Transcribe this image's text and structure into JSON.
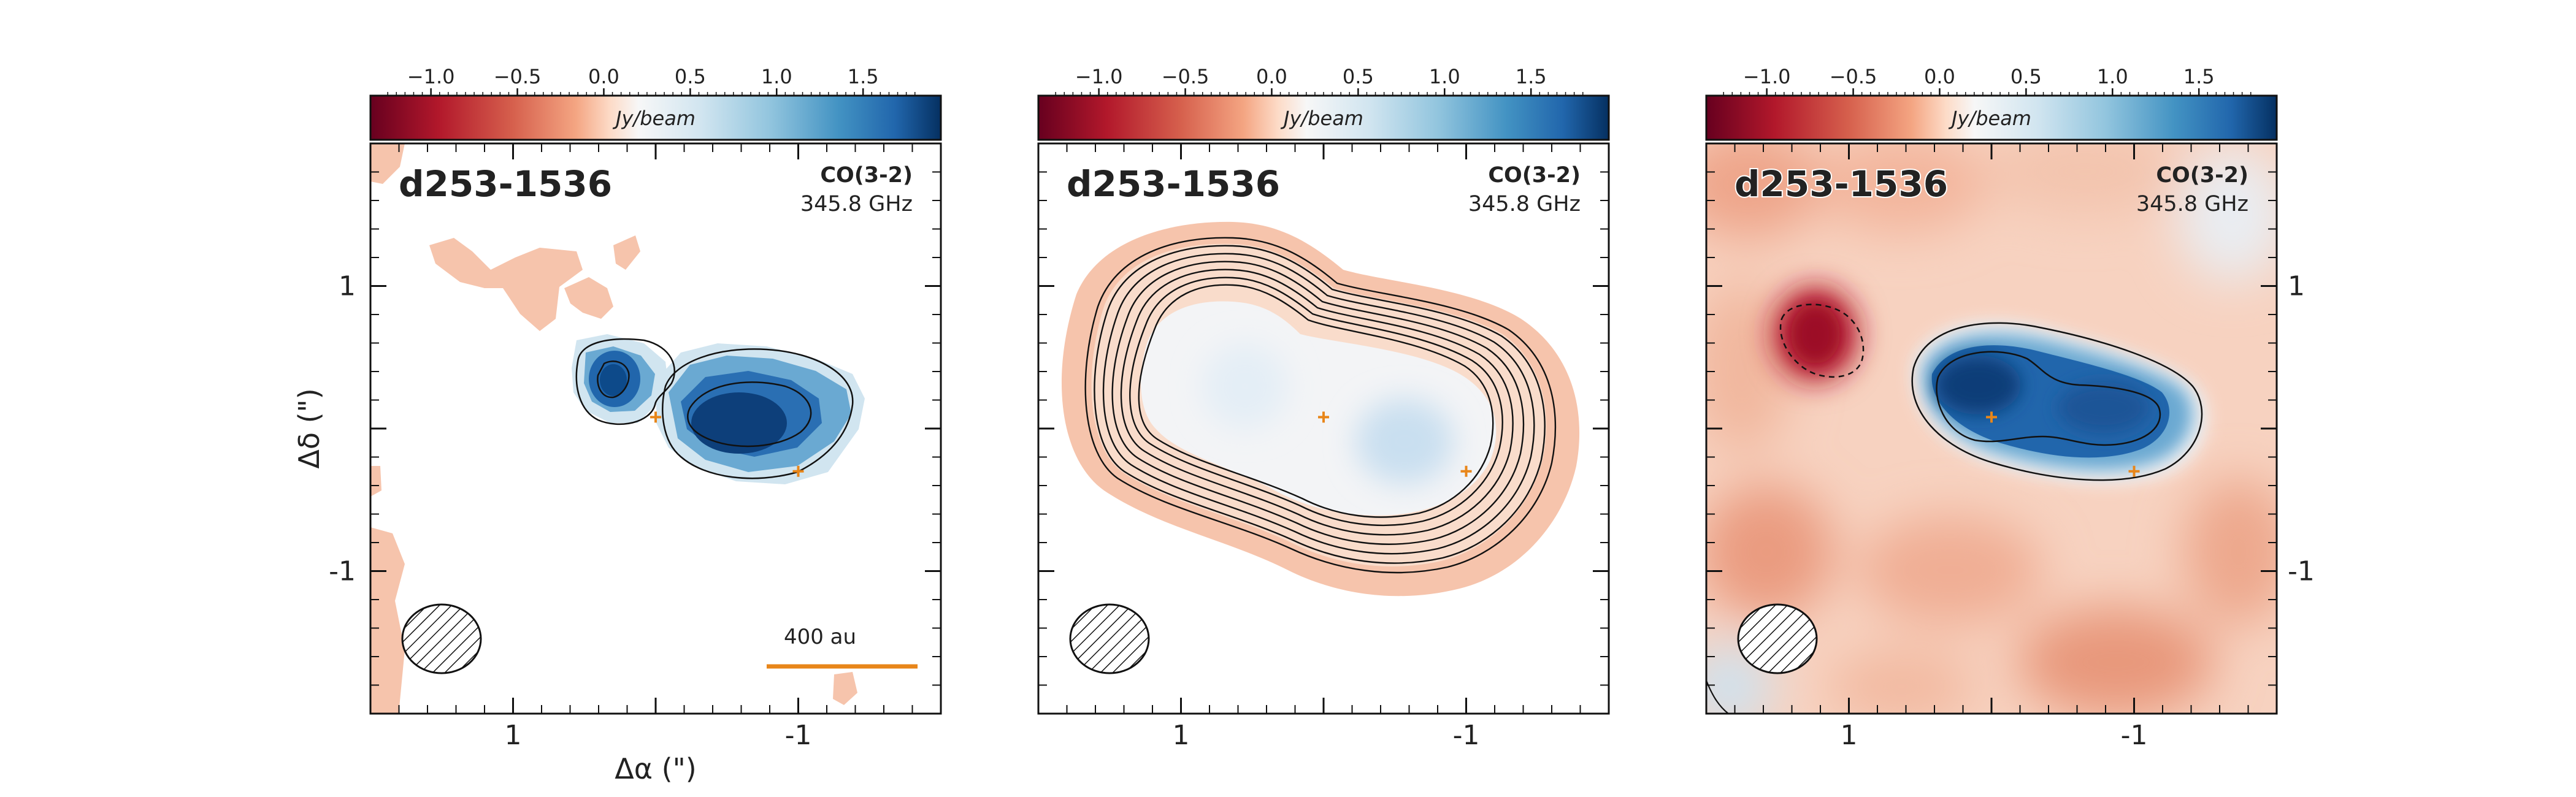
{
  "chart_data": [
    {
      "type": "heatmap",
      "panel": "data",
      "source_name": "d253-1536",
      "line_label": "CO(3-2)",
      "frequency": "345.8 GHz",
      "colorbar": {
        "label": "Jy/beam",
        "ticks": [
          "−1.0",
          "−0.5",
          "0.0",
          "0.5",
          "1.0",
          "1.5"
        ],
        "tick_values": [
          -1.0,
          -0.5,
          0.0,
          0.5,
          1.0,
          1.5
        ],
        "range": [
          -1.35,
          1.95
        ],
        "colormap": "RdBu"
      },
      "xlabel": "Δα (\")",
      "ylabel": "Δδ (\")",
      "x_ticks": [
        "1",
        "-1"
      ],
      "x_tick_values": [
        1,
        -1
      ],
      "y_ticks": [
        "1",
        "-1"
      ],
      "y_tick_values": [
        1,
        -1
      ],
      "xlim": [
        2.0,
        -2.0
      ],
      "ylim": [
        -2.0,
        2.0
      ],
      "scale_bar": "400 au",
      "beam_shown": true
    },
    {
      "type": "heatmap",
      "panel": "model",
      "source_name": "d253-1536",
      "line_label": "CO(3-2)",
      "frequency": "345.8 GHz",
      "colorbar": {
        "label": "Jy/beam",
        "ticks": [
          "−1.0",
          "−0.5",
          "0.0",
          "0.5",
          "1.0",
          "1.5"
        ],
        "tick_values": [
          -1.0,
          -0.5,
          0.0,
          0.5,
          1.0,
          1.5
        ],
        "range": [
          -1.35,
          1.95
        ],
        "colormap": "RdBu"
      },
      "x_ticks": [
        "1",
        "-1"
      ],
      "x_tick_values": [
        1,
        -1
      ],
      "xlim": [
        2.0,
        -2.0
      ],
      "ylim": [
        -2.0,
        2.0
      ],
      "beam_shown": true
    },
    {
      "type": "heatmap",
      "panel": "residual",
      "source_name": "d253-1536",
      "line_label": "CO(3-2)",
      "frequency": "345.8 GHz",
      "colorbar": {
        "label": "Jy/beam",
        "ticks": [
          "−1.0",
          "−0.5",
          "0.0",
          "0.5",
          "1.0",
          "1.5"
        ],
        "tick_values": [
          -1.0,
          -0.5,
          0.0,
          0.5,
          1.0,
          1.5
        ],
        "range": [
          -1.35,
          1.95
        ],
        "colormap": "RdBu"
      },
      "x_ticks": [
        "1",
        "-1"
      ],
      "x_tick_values": [
        1,
        -1
      ],
      "y_ticks": [
        "1",
        "-1"
      ],
      "y_tick_values": [
        1,
        -1
      ],
      "xlim": [
        2.0,
        -2.0
      ],
      "ylim": [
        -2.0,
        2.0
      ],
      "beam_shown": true
    }
  ],
  "markers": {
    "color": "#e8861a",
    "positions": [
      {
        "dx": 0.0,
        "dy": 0.08
      },
      {
        "dx": -1.0,
        "dy": -0.3
      }
    ]
  }
}
